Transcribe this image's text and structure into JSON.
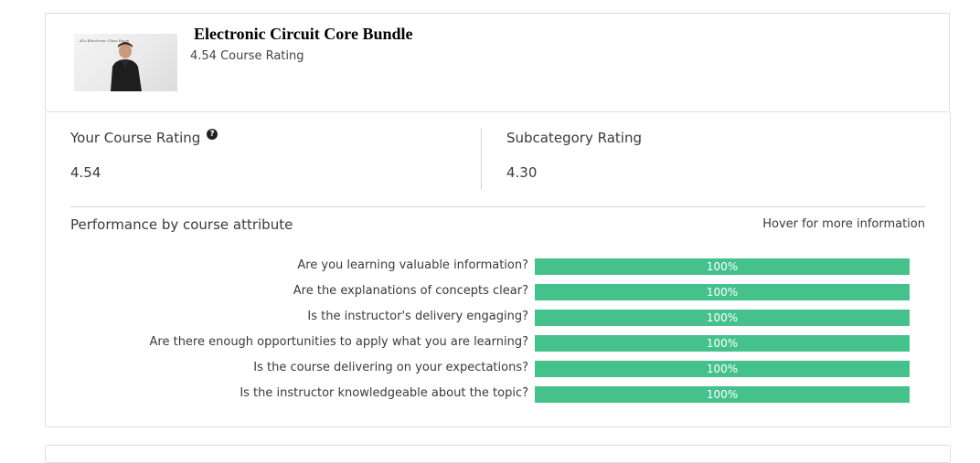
{
  "header": {
    "thumbnail_caption": "Al's Electronic Class Room",
    "title": "Electronic Circuit Core Bundle",
    "subtitle": "4.54 Course Rating"
  },
  "ratings": {
    "your_label": "Your Course Rating",
    "your_value": "4.54",
    "help_icon": "question-circle-icon",
    "subcategory_label": "Subcategory Rating",
    "subcategory_value": "4.30"
  },
  "performance": {
    "title": "Performance by course attribute",
    "hint": "Hover for more information",
    "bar_color": "#45c18b",
    "attributes": [
      {
        "question": "Are you learning valuable information?",
        "percent": "100%",
        "fraction": 1.0
      },
      {
        "question": "Are the explanations of concepts clear?",
        "percent": "100%",
        "fraction": 1.0
      },
      {
        "question": "Is the instructor's delivery engaging?",
        "percent": "100%",
        "fraction": 1.0
      },
      {
        "question": "Are there enough opportunities to apply what you are learning?",
        "percent": "100%",
        "fraction": 1.0
      },
      {
        "question": "Is the course delivering on your expectations?",
        "percent": "100%",
        "fraction": 1.0
      },
      {
        "question": "Is the instructor knowledgeable about the topic?",
        "percent": "100%",
        "fraction": 1.0
      }
    ]
  }
}
